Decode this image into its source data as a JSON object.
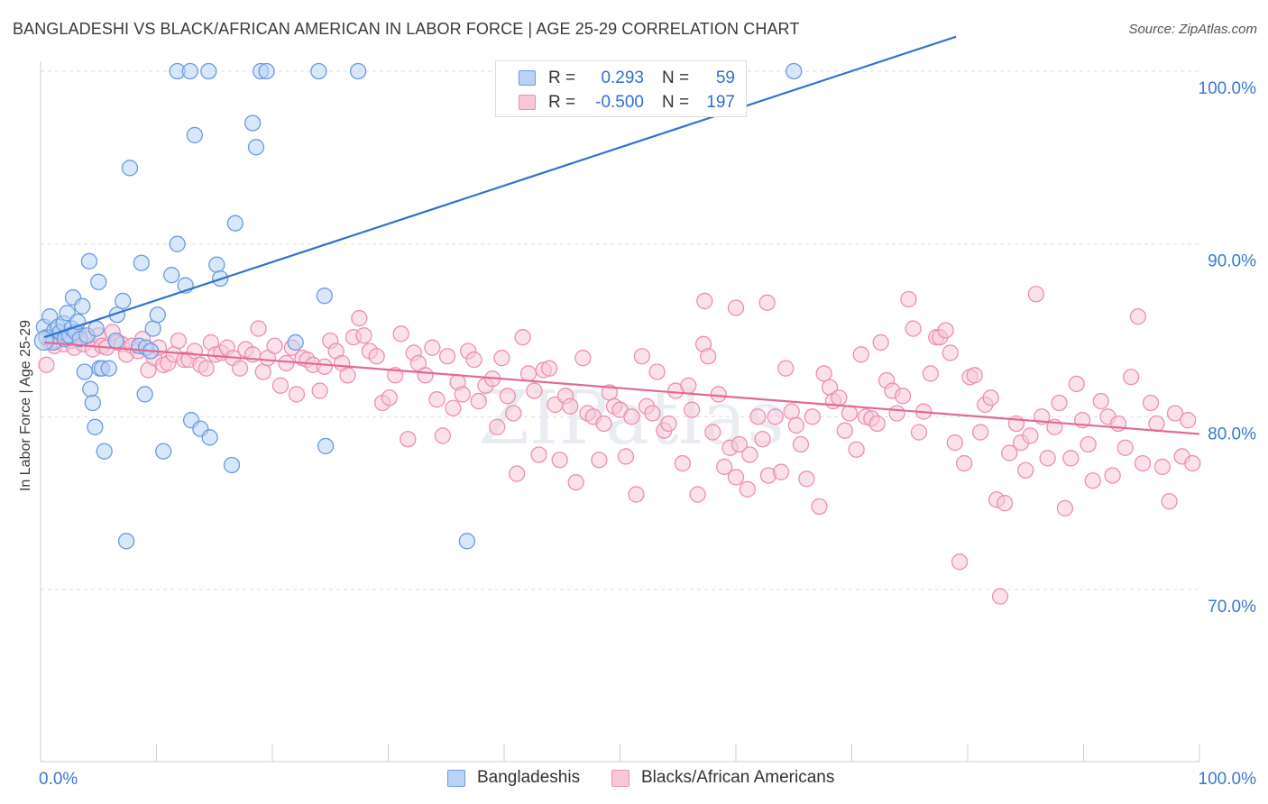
{
  "title": "BANGLADESHI VS BLACK/AFRICAN AMERICAN IN LABOR FORCE | AGE 25-29 CORRELATION CHART",
  "source": "Source: ZipAtlas.com",
  "watermark": "ZIPatlas",
  "colors": {
    "blue": "#6b9be0",
    "blue_fill": "#bad3f5",
    "blue_line": "#2f73d0",
    "pink": "#ee8fb0",
    "pink_fill": "#f8c8d8",
    "pink_line": "#e06a96",
    "tick_label": "#3a78d4",
    "grid": "#dedede"
  },
  "legend": {
    "rows": [
      {
        "r_label": "R =",
        "r_value": "0.293",
        "n_label": "N =",
        "n_value": "59",
        "color": "blue"
      },
      {
        "r_label": "R =",
        "r_value": "-0.500",
        "n_label": "N =",
        "n_value": "197",
        "color": "pink"
      }
    ],
    "bottom": [
      "Bangladeshis",
      "Blacks/African Americans"
    ]
  },
  "chart_data": {
    "type": "scatter",
    "title": "BANGLADESHI VS BLACK/AFRICAN AMERICAN IN LABOR FORCE | AGE 25-29 CORRELATION CHART",
    "xlabel": "",
    "ylabel": "In Labor Force | Age 25-29",
    "xlim": [
      0,
      100
    ],
    "ylim": [
      61.5,
      102
    ],
    "x_tick_labels": [
      "0.0%",
      "100.0%"
    ],
    "y_ticks": [
      70,
      80,
      90,
      100
    ],
    "y_tick_labels": [
      "70.0%",
      "80.0%",
      "90.0%",
      "100.0%"
    ],
    "grid": true,
    "legend_placement": "top-center",
    "series": [
      {
        "name": "Bangladeshis",
        "r": 0.293,
        "n": 59,
        "trend": {
          "x": [
            0.3,
            79
          ],
          "y": [
            84.6,
            102
          ]
        },
        "points": [
          [
            0.3,
            85.2
          ],
          [
            0.5,
            84.6
          ],
          [
            0.8,
            85.8
          ],
          [
            1.1,
            84.3
          ],
          [
            1.2,
            85.0
          ],
          [
            1.5,
            85.2
          ],
          [
            1.7,
            84.9
          ],
          [
            2.0,
            85.4
          ],
          [
            2.1,
            84.5
          ],
          [
            2.3,
            86.0
          ],
          [
            2.5,
            84.7
          ],
          [
            2.7,
            85.1
          ],
          [
            2.8,
            86.9
          ],
          [
            3.0,
            84.9
          ],
          [
            3.2,
            85.5
          ],
          [
            3.4,
            84.5
          ],
          [
            3.6,
            86.4
          ],
          [
            3.8,
            82.6
          ],
          [
            4.0,
            84.7
          ],
          [
            4.2,
            89.0
          ],
          [
            4.3,
            81.6
          ],
          [
            4.5,
            80.8
          ],
          [
            4.7,
            79.4
          ],
          [
            4.8,
            85.1
          ],
          [
            5.0,
            87.8
          ],
          [
            5.1,
            82.8
          ],
          [
            5.3,
            82.8
          ],
          [
            5.5,
            78.0
          ],
          [
            5.9,
            82.8
          ],
          [
            6.5,
            84.4
          ],
          [
            6.6,
            85.9
          ],
          [
            7.1,
            86.7
          ],
          [
            7.4,
            72.8
          ],
          [
            8.5,
            84.1
          ],
          [
            8.7,
            88.9
          ],
          [
            9.0,
            81.3
          ],
          [
            9.1,
            84.0
          ],
          [
            9.5,
            83.8
          ],
          [
            9.7,
            85.1
          ],
          [
            10.1,
            85.9
          ],
          [
            10.6,
            78.0
          ],
          [
            11.3,
            88.2
          ],
          [
            11.8,
            90.0
          ],
          [
            12.5,
            87.6
          ],
          [
            13.0,
            79.8
          ],
          [
            13.3,
            96.3
          ],
          [
            13.8,
            79.3
          ],
          [
            14.6,
            78.8
          ],
          [
            15.2,
            88.8
          ],
          [
            15.5,
            88.0
          ],
          [
            16.5,
            77.2
          ],
          [
            16.8,
            91.2
          ],
          [
            18.3,
            97.0
          ],
          [
            18.6,
            95.6
          ],
          [
            22.0,
            84.3
          ],
          [
            24.5,
            87.0
          ],
          [
            24.6,
            78.3
          ],
          [
            36.8,
            72.8
          ],
          [
            7.7,
            94.4
          ]
        ],
        "top_row_x": [
          11.8,
          12.9,
          14.5,
          19.0,
          19.5,
          24.0,
          27.4,
          65.0
        ]
      },
      {
        "name": "Blacks/African Americans",
        "r": -0.5,
        "n": 197,
        "trend": {
          "x": [
            0.3,
            100
          ],
          "y": [
            84.3,
            79.0
          ]
        },
        "points": [
          [
            0.5,
            83.0
          ],
          [
            0.8,
            84.3
          ],
          [
            1.0,
            84.6
          ],
          [
            1.2,
            84.1
          ],
          [
            1.4,
            84.4
          ],
          [
            1.7,
            84.8
          ],
          [
            2.0,
            84.2
          ],
          [
            2.3,
            84.7
          ],
          [
            2.6,
            84.4
          ],
          [
            2.9,
            84.0
          ],
          [
            3.3,
            84.8
          ],
          [
            3.7,
            84.2
          ],
          [
            4.1,
            84.5
          ],
          [
            4.5,
            83.9
          ],
          [
            5.0,
            84.7
          ],
          [
            5.3,
            84.1
          ],
          [
            5.7,
            84.0
          ],
          [
            6.2,
            84.9
          ],
          [
            6.6,
            84.3
          ],
          [
            7.0,
            84.2
          ],
          [
            7.4,
            83.6
          ],
          [
            7.9,
            84.1
          ],
          [
            8.4,
            83.8
          ],
          [
            8.8,
            84.5
          ],
          [
            9.3,
            82.7
          ],
          [
            9.8,
            83.4
          ],
          [
            10.2,
            84.0
          ],
          [
            10.6,
            83.0
          ],
          [
            11.0,
            83.1
          ],
          [
            11.5,
            83.6
          ],
          [
            11.9,
            84.4
          ],
          [
            12.4,
            83.3
          ],
          [
            12.8,
            83.3
          ],
          [
            13.3,
            83.8
          ],
          [
            13.8,
            83.0
          ],
          [
            14.3,
            82.8
          ],
          [
            14.7,
            84.3
          ],
          [
            15.1,
            83.6
          ],
          [
            15.6,
            83.7
          ],
          [
            16.1,
            84.0
          ],
          [
            16.6,
            83.4
          ],
          [
            17.2,
            82.8
          ],
          [
            17.7,
            83.9
          ],
          [
            18.3,
            83.6
          ],
          [
            18.8,
            85.1
          ],
          [
            19.2,
            82.6
          ],
          [
            19.6,
            83.4
          ],
          [
            20.2,
            84.1
          ],
          [
            20.7,
            81.8
          ],
          [
            21.2,
            83.1
          ],
          [
            21.7,
            84.0
          ],
          [
            22.1,
            81.3
          ],
          [
            22.6,
            83.4
          ],
          [
            23.0,
            83.3
          ],
          [
            23.5,
            83.0
          ],
          [
            24.1,
            81.5
          ],
          [
            24.5,
            82.9
          ],
          [
            25.0,
            84.4
          ],
          [
            25.5,
            83.8
          ],
          [
            26.0,
            83.1
          ],
          [
            26.5,
            82.4
          ],
          [
            27.0,
            84.6
          ],
          [
            27.5,
            85.7
          ],
          [
            27.9,
            84.7
          ],
          [
            28.4,
            83.8
          ],
          [
            29.0,
            83.5
          ],
          [
            29.5,
            80.8
          ],
          [
            30.1,
            81.1
          ],
          [
            30.6,
            82.4
          ],
          [
            31.1,
            84.8
          ],
          [
            31.7,
            78.7
          ],
          [
            32.2,
            83.7
          ],
          [
            32.6,
            83.1
          ],
          [
            33.2,
            82.4
          ],
          [
            33.8,
            84.0
          ],
          [
            34.2,
            81.0
          ],
          [
            34.7,
            78.9
          ],
          [
            35.1,
            83.5
          ],
          [
            35.6,
            80.5
          ],
          [
            36.0,
            82.0
          ],
          [
            36.4,
            81.3
          ],
          [
            36.9,
            83.8
          ],
          [
            37.4,
            83.3
          ],
          [
            37.8,
            80.9
          ],
          [
            38.4,
            81.8
          ],
          [
            39.0,
            82.2
          ],
          [
            39.4,
            79.4
          ],
          [
            39.8,
            83.4
          ],
          [
            40.3,
            81.2
          ],
          [
            40.8,
            80.2
          ],
          [
            41.1,
            76.7
          ],
          [
            41.6,
            84.6
          ],
          [
            42.1,
            82.5
          ],
          [
            42.6,
            81.5
          ],
          [
            43.0,
            77.8
          ],
          [
            43.4,
            82.7
          ],
          [
            43.9,
            82.8
          ],
          [
            44.4,
            80.7
          ],
          [
            44.8,
            77.5
          ],
          [
            45.3,
            81.2
          ],
          [
            45.7,
            80.6
          ],
          [
            46.2,
            76.2
          ],
          [
            46.8,
            83.4
          ],
          [
            47.2,
            80.2
          ],
          [
            47.7,
            80.0
          ],
          [
            48.2,
            77.5
          ],
          [
            48.6,
            79.6
          ],
          [
            49.1,
            81.4
          ],
          [
            49.5,
            80.6
          ],
          [
            50.0,
            80.4
          ],
          [
            50.5,
            77.7
          ],
          [
            51.0,
            80.0
          ],
          [
            51.4,
            75.5
          ],
          [
            51.9,
            83.5
          ],
          [
            52.3,
            80.6
          ],
          [
            52.8,
            80.2
          ],
          [
            53.2,
            82.6
          ],
          [
            53.8,
            79.2
          ],
          [
            54.2,
            79.6
          ],
          [
            54.8,
            81.5
          ],
          [
            55.4,
            77.3
          ],
          [
            55.9,
            81.8
          ],
          [
            56.2,
            80.4
          ],
          [
            56.7,
            75.5
          ],
          [
            57.2,
            84.2
          ],
          [
            57.6,
            83.5
          ],
          [
            58.0,
            79.1
          ],
          [
            58.5,
            81.3
          ],
          [
            59.0,
            77.1
          ],
          [
            59.5,
            78.2
          ],
          [
            60.0,
            76.5
          ],
          [
            60.3,
            78.4
          ],
          [
            61.0,
            75.8
          ],
          [
            61.2,
            77.8
          ],
          [
            61.9,
            80.0
          ],
          [
            62.3,
            78.7
          ],
          [
            62.8,
            76.6
          ],
          [
            63.4,
            80.0
          ],
          [
            63.9,
            76.8
          ],
          [
            64.3,
            82.8
          ],
          [
            64.8,
            80.3
          ],
          [
            65.2,
            79.5
          ],
          [
            65.6,
            78.4
          ],
          [
            66.1,
            76.4
          ],
          [
            66.6,
            80.0
          ],
          [
            67.2,
            74.8
          ],
          [
            67.6,
            82.5
          ],
          [
            68.1,
            81.7
          ],
          [
            68.4,
            80.9
          ],
          [
            68.9,
            81.1
          ],
          [
            69.4,
            79.2
          ],
          [
            69.8,
            80.2
          ],
          [
            70.4,
            78.1
          ],
          [
            70.8,
            83.6
          ],
          [
            71.2,
            80.0
          ],
          [
            71.7,
            79.9
          ],
          [
            72.2,
            79.6
          ],
          [
            72.5,
            84.3
          ],
          [
            73.0,
            82.1
          ],
          [
            73.5,
            81.5
          ],
          [
            73.9,
            80.2
          ],
          [
            74.4,
            81.2
          ],
          [
            74.9,
            86.8
          ],
          [
            75.3,
            85.1
          ],
          [
            75.8,
            79.1
          ],
          [
            76.2,
            80.3
          ],
          [
            76.8,
            82.5
          ],
          [
            77.3,
            84.6
          ],
          [
            77.6,
            84.6
          ],
          [
            78.1,
            85.0
          ],
          [
            78.5,
            83.7
          ],
          [
            78.9,
            78.5
          ],
          [
            79.3,
            71.6
          ],
          [
            79.7,
            77.3
          ],
          [
            80.2,
            82.3
          ],
          [
            80.6,
            82.4
          ],
          [
            81.1,
            79.1
          ],
          [
            81.5,
            80.7
          ],
          [
            82.0,
            81.1
          ],
          [
            82.5,
            75.2
          ],
          [
            82.8,
            69.6
          ],
          [
            83.2,
            75.0
          ],
          [
            83.6,
            77.9
          ],
          [
            84.2,
            79.6
          ],
          [
            84.6,
            78.5
          ],
          [
            85.0,
            76.9
          ],
          [
            85.4,
            78.9
          ],
          [
            85.9,
            87.1
          ],
          [
            86.4,
            80.0
          ],
          [
            86.9,
            77.6
          ],
          [
            87.5,
            79.4
          ],
          [
            87.9,
            80.8
          ],
          [
            88.4,
            74.7
          ],
          [
            88.9,
            77.6
          ],
          [
            89.4,
            81.9
          ],
          [
            89.9,
            79.8
          ],
          [
            90.4,
            78.4
          ],
          [
            90.8,
            76.3
          ],
          [
            91.5,
            80.9
          ],
          [
            92.1,
            80.0
          ],
          [
            92.5,
            76.6
          ],
          [
            93.0,
            79.6
          ],
          [
            93.6,
            78.2
          ],
          [
            94.1,
            82.3
          ],
          [
            94.7,
            85.8
          ],
          [
            95.1,
            77.3
          ],
          [
            95.8,
            80.8
          ],
          [
            96.3,
            79.6
          ],
          [
            96.8,
            77.1
          ],
          [
            97.4,
            75.1
          ],
          [
            97.9,
            80.2
          ],
          [
            98.5,
            77.7
          ],
          [
            99.0,
            79.8
          ],
          [
            99.4,
            77.3
          ],
          [
            57.3,
            86.7
          ],
          [
            60.0,
            86.3
          ],
          [
            62.7,
            86.6
          ]
        ]
      }
    ]
  }
}
